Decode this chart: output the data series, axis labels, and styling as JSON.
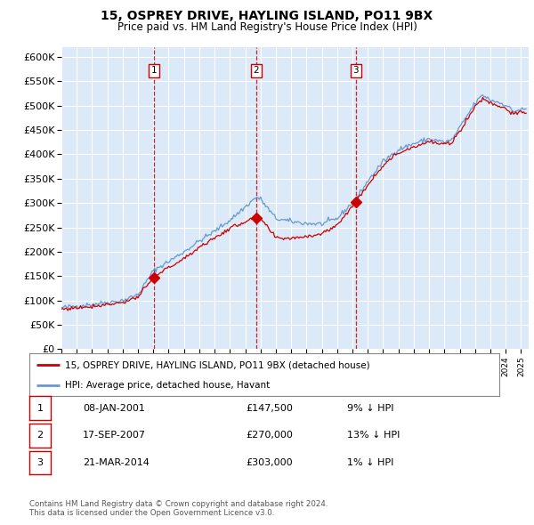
{
  "title": "15, OSPREY DRIVE, HAYLING ISLAND, PO11 9BX",
  "subtitle": "Price paid vs. HM Land Registry's House Price Index (HPI)",
  "legend_property": "15, OSPREY DRIVE, HAYLING ISLAND, PO11 9BX (detached house)",
  "legend_hpi": "HPI: Average price, detached house, Havant",
  "transactions": [
    {
      "num": 1,
      "date": "08-JAN-2001",
      "price": 147500,
      "hpi_rel": "9% ↓ HPI",
      "date_dec": 2001.03
    },
    {
      "num": 2,
      "date": "17-SEP-2007",
      "price": 270000,
      "hpi_rel": "13% ↓ HPI",
      "date_dec": 2007.71
    },
    {
      "num": 3,
      "date": "21-MAR-2014",
      "price": 303000,
      "hpi_rel": "1% ↓ HPI",
      "date_dec": 2014.22
    }
  ],
  "ylim": [
    0,
    620000
  ],
  "yticks": [
    0,
    50000,
    100000,
    150000,
    200000,
    250000,
    300000,
    350000,
    400000,
    450000,
    500000,
    550000,
    600000
  ],
  "xstart": 1995.0,
  "xend": 2025.5,
  "background_color": "#dce9f8",
  "line_color_hpi": "#6699cc",
  "line_color_property": "#cc0000",
  "marker_color": "#cc0000",
  "vline_color": "#cc0000",
  "grid_color": "#ffffff",
  "footnote1": "Contains HM Land Registry data © Crown copyright and database right 2024.",
  "footnote2": "This data is licensed under the Open Government Licence v3.0."
}
